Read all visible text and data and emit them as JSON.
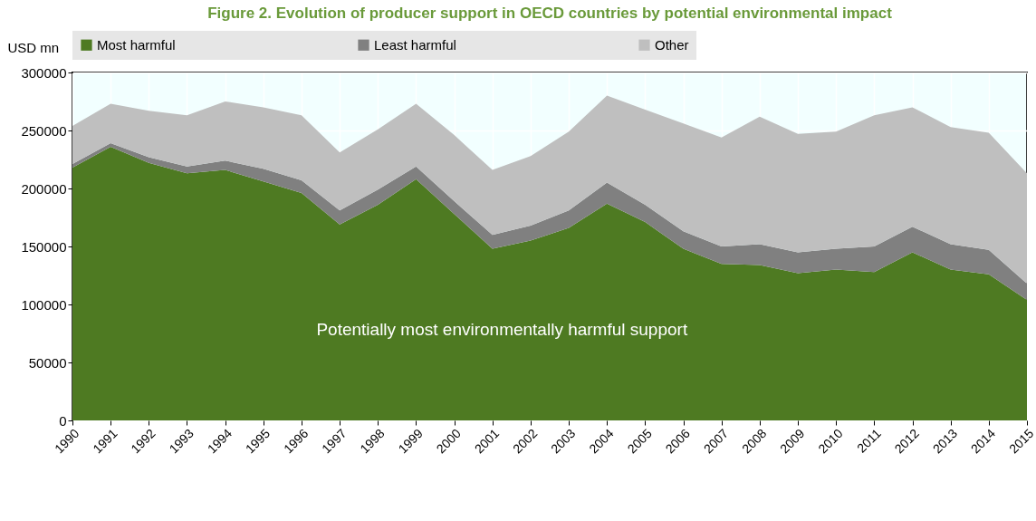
{
  "chart_data": {
    "type": "area",
    "stacked": true,
    "title": "Figure 2. Evolution of producer support in OECD countries by potential environmental impact",
    "ylabel": "USD mn",
    "categories": [
      "1990",
      "1991",
      "1992",
      "1993",
      "1994",
      "1995",
      "1996",
      "1997",
      "1998",
      "1999",
      "2000",
      "2001",
      "2002",
      "2003",
      "2004",
      "2005",
      "2006",
      "2007",
      "2008",
      "2009",
      "2010",
      "2011",
      "2012",
      "2013",
      "2014",
      "2015"
    ],
    "series": [
      {
        "name": "Most harmful",
        "color": "#4e7a22",
        "values": [
          218000,
          236000,
          222000,
          213000,
          216000,
          206000,
          196000,
          169000,
          186000,
          208000,
          178000,
          148000,
          155000,
          166000,
          187000,
          171000,
          148000,
          135000,
          134000,
          127000,
          130000,
          128000,
          145000,
          130000,
          126000,
          104000
        ]
      },
      {
        "name": "Least harmful",
        "color": "#808080",
        "values": [
          3000,
          3000,
          5000,
          6000,
          8000,
          11000,
          11000,
          12000,
          13000,
          11000,
          11000,
          12000,
          13000,
          15000,
          18000,
          15000,
          15000,
          15000,
          18000,
          18000,
          18000,
          22000,
          22000,
          22000,
          21000,
          14000
        ]
      },
      {
        "name": "Other",
        "color": "#bfbfbf",
        "values": [
          33000,
          34000,
          40000,
          44000,
          51000,
          53000,
          56000,
          50000,
          52000,
          54000,
          57000,
          56000,
          60000,
          68000,
          75000,
          82000,
          93000,
          94000,
          110000,
          102000,
          101000,
          113000,
          103000,
          101000,
          101000,
          95000
        ]
      }
    ],
    "ylim": [
      0,
      300000
    ],
    "yticks": [
      0,
      50000,
      100000,
      150000,
      200000,
      250000,
      300000
    ],
    "grid": true,
    "legend": "top",
    "annotations": [
      "Potentially most environmentally harmful support"
    ]
  }
}
